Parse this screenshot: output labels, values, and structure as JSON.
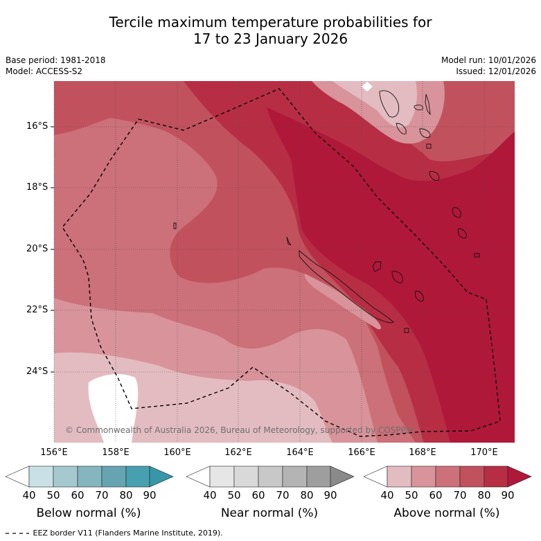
{
  "title": {
    "line1": "Tercile maximum temperature probabilities for",
    "line2": "17 to 23 January 2026"
  },
  "meta": {
    "base_period": "Base period: 1981-2018",
    "model": "Model: ACCESS-S2",
    "model_run": "Model run: 10/01/2026",
    "issued": "Issued: 12/01/2026"
  },
  "map": {
    "lat_labels": [
      "16°S",
      "18°S",
      "20°S",
      "22°S",
      "24°S"
    ],
    "lon_labels": [
      "156°E",
      "158°E",
      "160°E",
      "162°E",
      "164°E",
      "166°E",
      "168°E",
      "170°E"
    ],
    "copyright": "© Commonwealth of Australia 2026, Bureau of Meteorology, supported by COSPPac"
  },
  "colorbars": [
    {
      "title": "Below normal (%)",
      "ticks": [
        "40",
        "50",
        "60",
        "70",
        "80",
        "90"
      ],
      "colors": [
        "#ffffff",
        "#c9e1e6",
        "#a5c9cf",
        "#85b5bf",
        "#66a4b1",
        "#46a0af",
        "#3697a7"
      ]
    },
    {
      "title": "Near normal (%)",
      "ticks": [
        "40",
        "50",
        "60",
        "70",
        "80",
        "90"
      ],
      "colors": [
        "#ffffff",
        "#e6e6e6",
        "#d9d9d9",
        "#c8c8c8",
        "#b4b4b4",
        "#9e9e9e",
        "#8a8a8a"
      ]
    },
    {
      "title": "Above normal (%)",
      "ticks": [
        "40",
        "50",
        "60",
        "70",
        "80",
        "90"
      ],
      "colors": [
        "#ffffff",
        "#e3bcc1",
        "#d8939b",
        "#cc7079",
        "#c2515e",
        "#b72e44",
        "#b0183a"
      ]
    }
  ],
  "legend": {
    "eez_label": "EEZ border V11 (Flanders Marine Institute, 2019)."
  }
}
